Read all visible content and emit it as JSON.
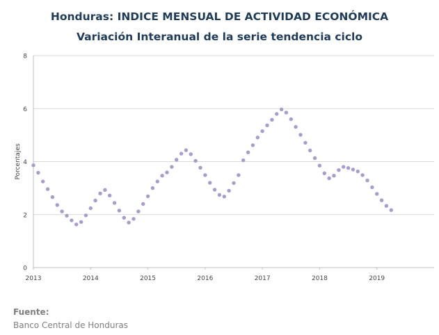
{
  "header": {
    "title": "Honduras: INDICE MENSUAL DE ACTIVIDAD ECONÓMICA",
    "subtitle": "Variación Interanual de la serie tendencia ciclo"
  },
  "source": {
    "label": "Fuente:",
    "text": "Banco Central de Honduras"
  },
  "chart_data": {
    "type": "scatter",
    "ylabel": "Porcentajes",
    "xlabel": "",
    "ylim": [
      0,
      8
    ],
    "yticks": [
      0,
      2,
      4,
      6,
      8
    ],
    "xlim": [
      2013,
      2020
    ],
    "xticks": [
      "2013",
      "2014",
      "2015",
      "2016",
      "2017",
      "2018",
      "2019"
    ],
    "grid": true,
    "marker_color": "#a99bcc",
    "series": [
      {
        "x_start": 2013,
        "x_step": 0.083333,
        "values": [
          3.86,
          3.58,
          3.25,
          2.96,
          2.66,
          2.36,
          2.12,
          1.96,
          1.78,
          1.63,
          1.72,
          1.97,
          2.24,
          2.53,
          2.8,
          2.93,
          2.72,
          2.44,
          2.15,
          1.88,
          1.7,
          1.84,
          2.12,
          2.4,
          2.69,
          3.0,
          3.25,
          3.47,
          3.59,
          3.8,
          4.07,
          4.3,
          4.43,
          4.28,
          4.03,
          3.77,
          3.49,
          3.2,
          2.94,
          2.74,
          2.68,
          2.9,
          3.19,
          3.49,
          4.05,
          4.35,
          4.62,
          4.91,
          5.15,
          5.37,
          5.58,
          5.8,
          5.97,
          5.85,
          5.6,
          5.31,
          5.01,
          4.71,
          4.42,
          4.13,
          3.85,
          3.56,
          3.37,
          3.47,
          3.68,
          3.8,
          3.76,
          3.7,
          3.63,
          3.49,
          3.29,
          3.03,
          2.78,
          2.54,
          2.33,
          2.17
        ]
      }
    ]
  }
}
